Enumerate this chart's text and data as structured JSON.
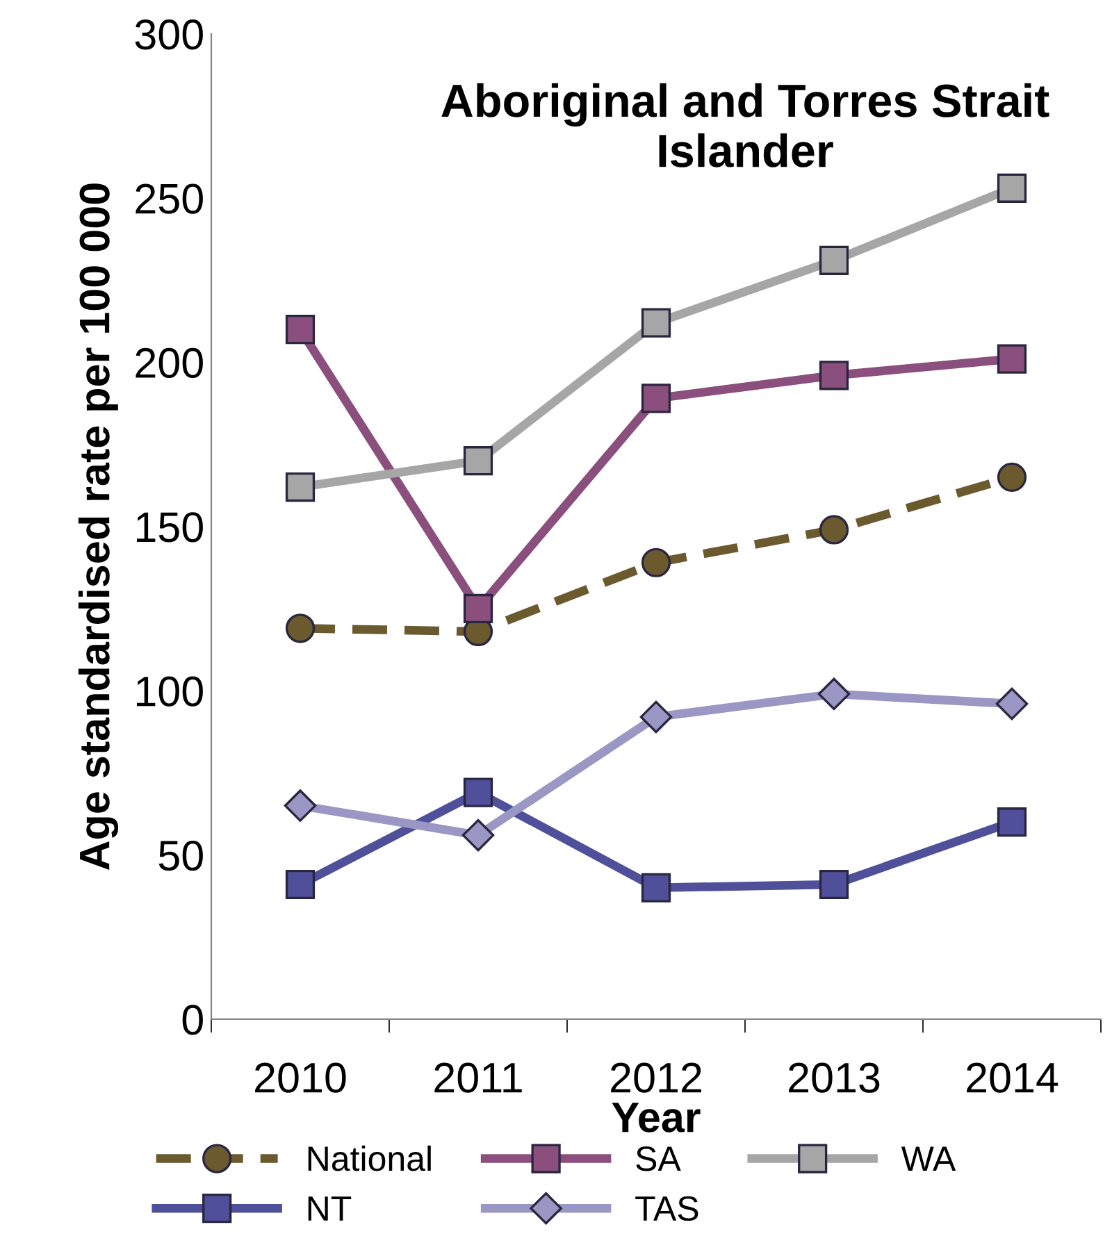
{
  "chart_data": {
    "type": "line",
    "title": "Aboriginal and Torres Strait Islander",
    "xlabel": "Year",
    "ylabel": "Age standardised rate per 100 000",
    "categories": [
      "2010",
      "2011",
      "2012",
      "2013",
      "2014"
    ],
    "series": [
      {
        "name": "National",
        "color": "#6b5a2e",
        "line_style": "dashed",
        "marker": "circle",
        "values": [
          119,
          118,
          139,
          149,
          165
        ]
      },
      {
        "name": "NT",
        "color": "#4f4f9a",
        "marker": "square",
        "values": [
          41,
          69,
          40,
          41,
          60
        ]
      },
      {
        "name": "SA",
        "color": "#8b4f7e",
        "marker": "square",
        "values": [
          210,
          125,
          189,
          196,
          201
        ]
      },
      {
        "name": "TAS",
        "color": "#9a97c4",
        "marker": "diamond",
        "values": [
          65,
          56,
          92,
          99,
          96
        ]
      },
      {
        "name": "WA",
        "color": "#a6a6a6",
        "marker": "square",
        "values": [
          162,
          170,
          212,
          231,
          253
        ]
      }
    ],
    "ylim": [
      0,
      300
    ],
    "yticks": [
      0,
      50,
      100,
      150,
      200,
      250,
      300
    ],
    "grid": false,
    "legend": "bottom"
  }
}
